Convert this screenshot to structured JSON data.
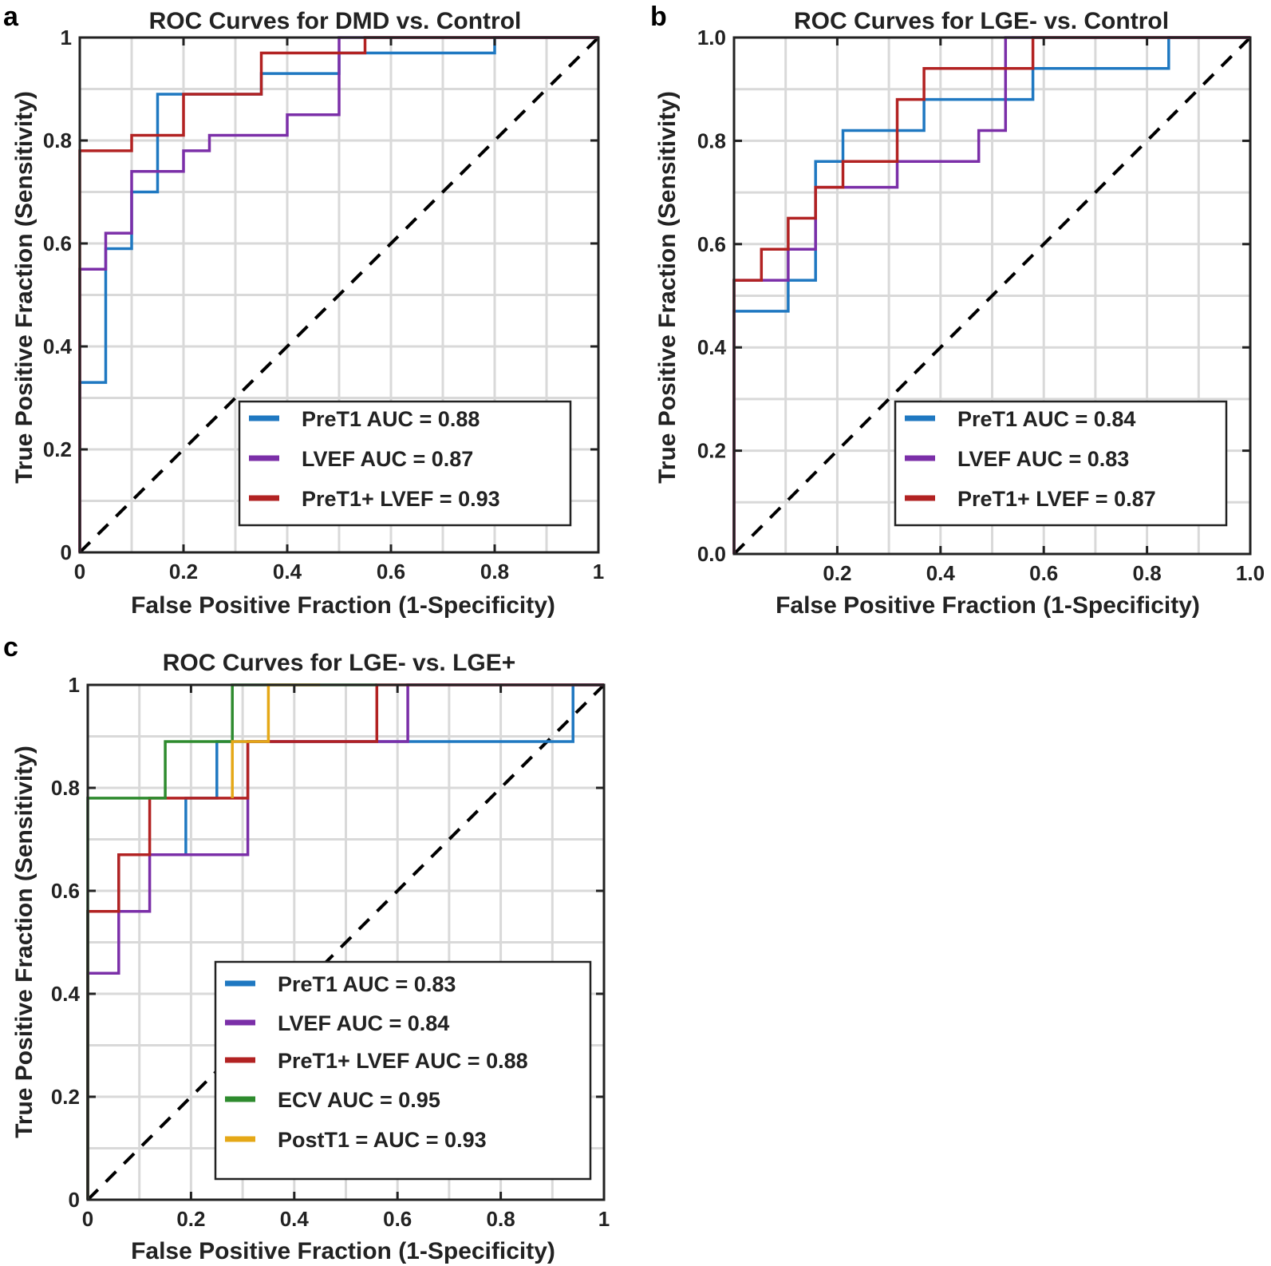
{
  "chart_data": [
    {
      "panel": "a",
      "type": "line",
      "title": "ROC Curves for DMD vs. Control",
      "xlabel": "False Positive Fraction (1-Specificity)",
      "ylabel": "True Positive Fraction (Sensitivity)",
      "xlim": [
        0,
        1
      ],
      "ylim": [
        0,
        1
      ],
      "xticks": [
        0,
        0.2,
        0.4,
        0.6,
        0.8,
        1
      ],
      "xtick_labels": [
        "0",
        "0.2",
        "0.4",
        "0.6",
        "0.8",
        "1"
      ],
      "yticks": [
        0,
        0.2,
        0.4,
        0.6,
        0.8,
        1
      ],
      "ytick_labels": [
        "0",
        "0.2",
        "0.4",
        "0.6",
        "0.8",
        "1"
      ],
      "grid": true,
      "legend_position": "lower-right",
      "series": [
        {
          "name": "PreT1 AUC = 0.88",
          "color": "#1f78c1",
          "x": [
            0,
            0,
            0.05,
            0.05,
            0.1,
            0.1,
            0.15,
            0.15,
            0.2,
            0.2,
            0.35,
            0.35,
            0.5,
            0.5,
            0.8,
            0.8,
            1
          ],
          "y": [
            0,
            0.33,
            0.33,
            0.59,
            0.59,
            0.7,
            0.7,
            0.89,
            0.89,
            0.89,
            0.89,
            0.93,
            0.93,
            0.97,
            0.97,
            1,
            1
          ]
        },
        {
          "name": "LVEF AUC = 0.87",
          "color": "#7b2fa8",
          "x": [
            0,
            0,
            0.05,
            0.05,
            0.1,
            0.1,
            0.2,
            0.2,
            0.25,
            0.25,
            0.4,
            0.4,
            0.5,
            0.5,
            1
          ],
          "y": [
            0,
            0.55,
            0.55,
            0.62,
            0.62,
            0.74,
            0.74,
            0.78,
            0.78,
            0.81,
            0.81,
            0.85,
            0.85,
            1,
            1
          ]
        },
        {
          "name": "PreT1+ LVEF = 0.93",
          "color": "#b22222",
          "x": [
            0,
            0,
            0.1,
            0.1,
            0.2,
            0.2,
            0.35,
            0.35,
            0.55,
            0.55,
            1
          ],
          "y": [
            0,
            0.78,
            0.78,
            0.81,
            0.81,
            0.89,
            0.89,
            0.97,
            0.97,
            1,
            1
          ]
        },
        {
          "name": "chance",
          "color": "#000000",
          "dashed": true,
          "x": [
            0,
            1
          ],
          "y": [
            0,
            1
          ]
        }
      ]
    },
    {
      "panel": "b",
      "type": "line",
      "title": "ROC Curves for LGE- vs. Control",
      "xlabel": "False Positive Fraction (1-Specificity)",
      "ylabel": "True Positive Fraction (Sensitivity)",
      "xlim": [
        0,
        1
      ],
      "ylim": [
        0,
        1
      ],
      "xticks": [
        0.2,
        0.4,
        0.6,
        0.8,
        1
      ],
      "xtick_labels": [
        "0.2",
        "0.4",
        "0.6",
        "0.8",
        "1.0"
      ],
      "yticks": [
        0,
        0.2,
        0.4,
        0.6,
        0.8,
        1
      ],
      "ytick_labels": [
        "0.0",
        "0.2",
        "0.4",
        "0.6",
        "0.8",
        "1.0"
      ],
      "grid": true,
      "legend_position": "lower-right",
      "series": [
        {
          "name": "PreT1 AUC = 0.84",
          "color": "#1f78c1",
          "x": [
            0,
            0,
            0.105,
            0.105,
            0.158,
            0.158,
            0.211,
            0.211,
            0.316,
            0.316,
            0.368,
            0.368,
            0.579,
            0.579,
            0.842,
            0.842,
            1
          ],
          "y": [
            0,
            0.47,
            0.47,
            0.53,
            0.53,
            0.76,
            0.76,
            0.82,
            0.82,
            0.82,
            0.82,
            0.88,
            0.88,
            0.94,
            0.94,
            1,
            1
          ]
        },
        {
          "name": "LVEF AUC = 0.83",
          "color": "#7b2fa8",
          "x": [
            0,
            0,
            0.105,
            0.105,
            0.158,
            0.158,
            0.316,
            0.316,
            0.474,
            0.474,
            0.526,
            0.526,
            1
          ],
          "y": [
            0,
            0.53,
            0.53,
            0.59,
            0.59,
            0.71,
            0.71,
            0.76,
            0.76,
            0.82,
            0.82,
            1,
            1
          ]
        },
        {
          "name": "PreT1+ LVEF = 0.87",
          "color": "#b22222",
          "x": [
            0,
            0,
            0.053,
            0.053,
            0.105,
            0.105,
            0.158,
            0.158,
            0.211,
            0.211,
            0.316,
            0.316,
            0.368,
            0.368,
            0.579,
            0.579,
            1
          ],
          "y": [
            0,
            0.53,
            0.53,
            0.59,
            0.59,
            0.65,
            0.65,
            0.71,
            0.71,
            0.76,
            0.76,
            0.88,
            0.88,
            0.94,
            0.94,
            1,
            1
          ]
        },
        {
          "name": "chance",
          "color": "#000000",
          "dashed": true,
          "x": [
            0,
            1
          ],
          "y": [
            0,
            1
          ]
        }
      ]
    },
    {
      "panel": "c",
      "type": "line",
      "title": "ROC Curves for LGE- vs. LGE+",
      "xlabel": "False Positive Fraction (1-Specificity)",
      "ylabel": "True Positive Fraction (Sensitivity)",
      "xlim": [
        0,
        1
      ],
      "ylim": [
        0,
        1
      ],
      "xticks": [
        0,
        0.2,
        0.4,
        0.6,
        0.8,
        1
      ],
      "xtick_labels": [
        "0",
        "0.2",
        "0.4",
        "0.6",
        "0.8",
        "1"
      ],
      "yticks": [
        0,
        0.2,
        0.4,
        0.6,
        0.8,
        1
      ],
      "ytick_labels": [
        "0",
        "0.2",
        "0.4",
        "0.6",
        "0.8",
        "1"
      ],
      "grid": true,
      "legend_position": "lower-right",
      "series": [
        {
          "name": "PreT1 AUC = 0.83",
          "color": "#1f78c1",
          "x": [
            0,
            0,
            0.06,
            0.06,
            0.12,
            0.12,
            0.19,
            0.19,
            0.25,
            0.25,
            0.31,
            0.31,
            0.94,
            0.94,
            1
          ],
          "y": [
            0,
            0.56,
            0.56,
            0.67,
            0.67,
            0.67,
            0.67,
            0.78,
            0.78,
            0.89,
            0.89,
            0.89,
            0.89,
            1,
            1
          ]
        },
        {
          "name": "LVEF AUC = 0.84",
          "color": "#7b2fa8",
          "x": [
            0,
            0,
            0.06,
            0.06,
            0.12,
            0.12,
            0.31,
            0.31,
            0.62,
            0.62,
            1
          ],
          "y": [
            0,
            0.44,
            0.44,
            0.56,
            0.56,
            0.67,
            0.67,
            0.89,
            0.89,
            1,
            1
          ]
        },
        {
          "name": "PreT1+ LVEF AUC = 0.88",
          "color": "#b22222",
          "x": [
            0,
            0,
            0.06,
            0.06,
            0.12,
            0.12,
            0.19,
            0.19,
            0.31,
            0.31,
            0.56,
            0.56,
            1
          ],
          "y": [
            0,
            0.56,
            0.56,
            0.67,
            0.67,
            0.78,
            0.78,
            0.78,
            0.78,
            0.89,
            0.89,
            1,
            1
          ]
        },
        {
          "name": "ECV AUC = 0.95",
          "color": "#2e8b2e",
          "x": [
            0,
            0,
            0.15,
            0.15,
            0.28,
            0.28,
            0.56
          ],
          "y": [
            0,
            0.78,
            0.78,
            0.89,
            0.89,
            1,
            1
          ]
        },
        {
          "name": "PostT1 = AUC = 0.93",
          "color": "#e5a817",
          "x": [
            0.28,
            0.28,
            0.3,
            0.3,
            0.35,
            0.35,
            0.45
          ],
          "y": [
            0.78,
            0.89,
            0.89,
            0.89,
            0.89,
            1,
            1
          ]
        },
        {
          "name": "chance",
          "color": "#000000",
          "dashed": true,
          "x": [
            0,
            1
          ],
          "y": [
            0,
            1
          ]
        }
      ]
    }
  ]
}
